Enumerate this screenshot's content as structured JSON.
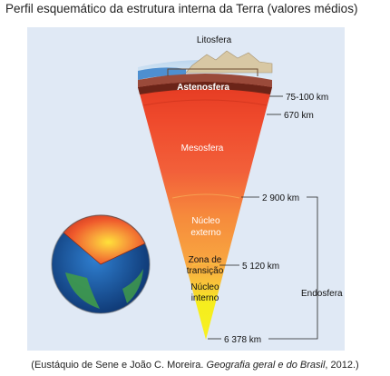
{
  "title": "Perfil esquemático da estrutura interna da Terra (valores médios)",
  "layers": {
    "litosfera": "Litosfera",
    "astenosfera": "Astenosfera",
    "mesosfera": "Mesosfera",
    "nucleo_externo_1": "Núcleo",
    "nucleo_externo_2": "externo",
    "zona_transicao_1": "Zona de",
    "zona_transicao_2": "transição",
    "nucleo_interno_1": "Núcleo",
    "nucleo_interno_2": "interno"
  },
  "depths": {
    "d1": "75-100 km",
    "d2": "670 km",
    "d3": "2 900 km",
    "d4": "5 120 km",
    "d5": "6 378 km"
  },
  "endosfera": "Endosfera",
  "caption": {
    "prefix": "(Eustáquio de Sene e João C. Moreira. ",
    "book": "Geografia geral e do Brasil",
    "suffix": ", 2012.)"
  },
  "colors": {
    "panel": "#e0e9f5",
    "astenosfera": "#6b2418",
    "mesosfera": "#ef4a2c",
    "nucleo_externo": "#f79a3c",
    "nucleo_interno": "#f6ee1e"
  }
}
